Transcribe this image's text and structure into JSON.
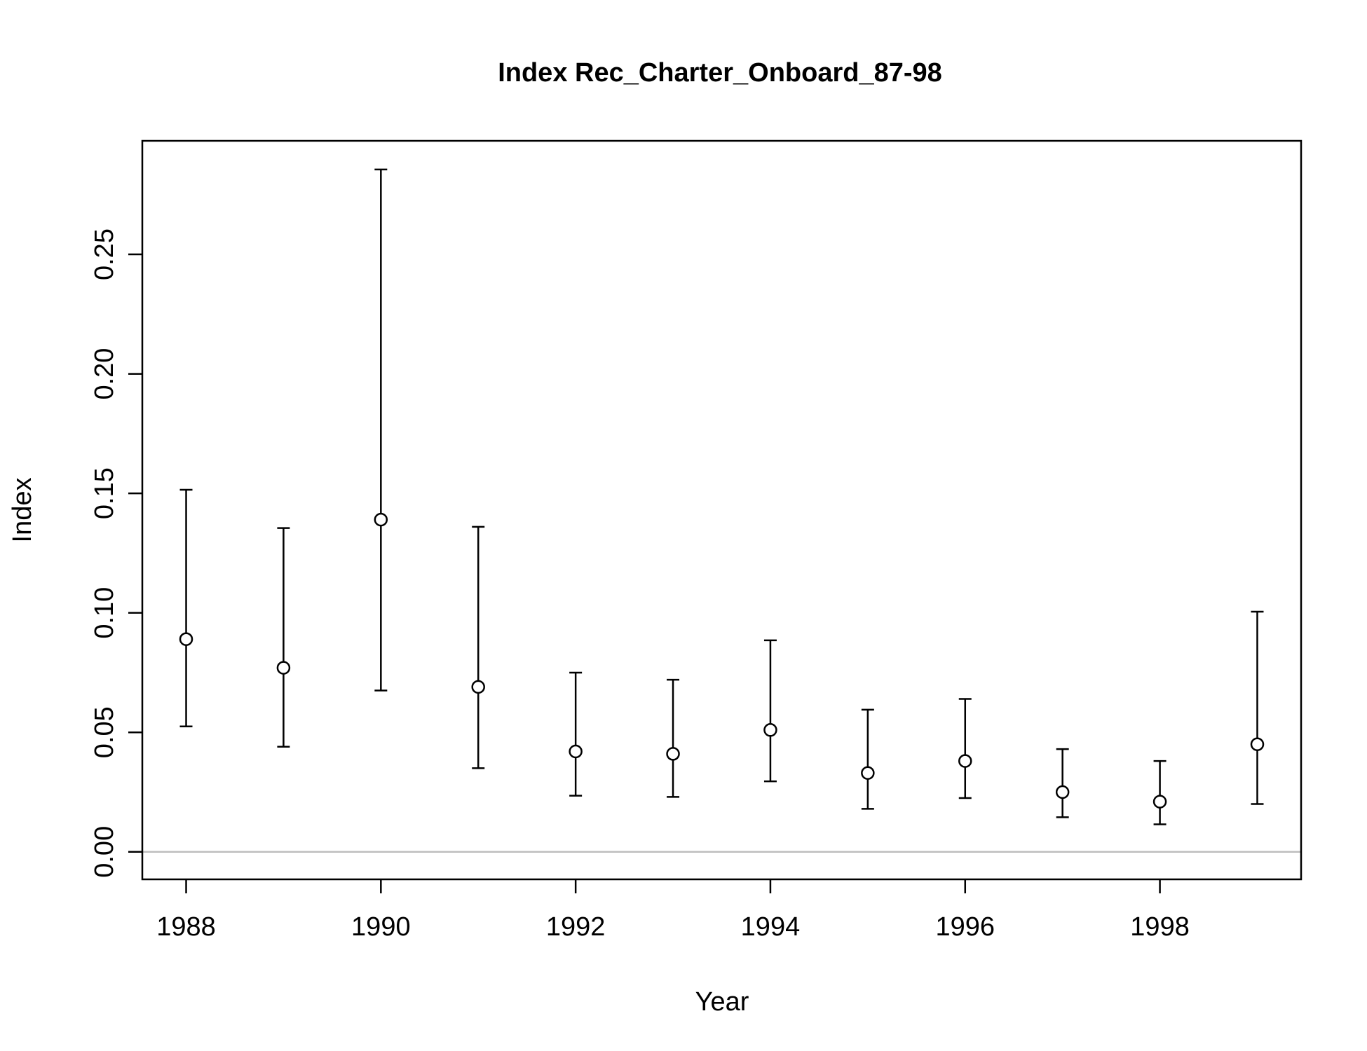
{
  "chart_data": {
    "type": "scatter",
    "title": "Index Rec_Charter_Onboard_87-98",
    "xlabel": "Year",
    "ylabel": "Index",
    "xlim": [
      1987.55,
      1999.45
    ],
    "ylim": [
      -0.0115,
      0.2975
    ],
    "x_ticks": [
      {
        "value": 1988,
        "label": "1988"
      },
      {
        "value": 1990,
        "label": "1990"
      },
      {
        "value": 1992,
        "label": "1992"
      },
      {
        "value": 1994,
        "label": "1994"
      },
      {
        "value": 1996,
        "label": "1996"
      },
      {
        "value": 1998,
        "label": "1998"
      }
    ],
    "y_ticks": [
      {
        "value": 0.0,
        "label": "0.00"
      },
      {
        "value": 0.05,
        "label": "0.05"
      },
      {
        "value": 0.1,
        "label": "0.10"
      },
      {
        "value": 0.15,
        "label": "0.15"
      },
      {
        "value": 0.2,
        "label": "0.20"
      },
      {
        "value": 0.25,
        "label": "0.25"
      }
    ],
    "reference_line": {
      "y": 0,
      "color": "#bebebe"
    },
    "points": [
      {
        "x": 1988,
        "y": 0.089,
        "lower": 0.0525,
        "upper": 0.1515
      },
      {
        "x": 1989,
        "y": 0.077,
        "lower": 0.044,
        "upper": 0.1355
      },
      {
        "x": 1990,
        "y": 0.139,
        "lower": 0.0675,
        "upper": 0.2855
      },
      {
        "x": 1991,
        "y": 0.069,
        "lower": 0.035,
        "upper": 0.136
      },
      {
        "x": 1992,
        "y": 0.042,
        "lower": 0.0235,
        "upper": 0.075
      },
      {
        "x": 1993,
        "y": 0.041,
        "lower": 0.023,
        "upper": 0.072
      },
      {
        "x": 1994,
        "y": 0.051,
        "lower": 0.0295,
        "upper": 0.0885
      },
      {
        "x": 1995,
        "y": 0.033,
        "lower": 0.018,
        "upper": 0.0595
      },
      {
        "x": 1996,
        "y": 0.038,
        "lower": 0.0225,
        "upper": 0.064
      },
      {
        "x": 1997,
        "y": 0.025,
        "lower": 0.0145,
        "upper": 0.043
      },
      {
        "x": 1998,
        "y": 0.021,
        "lower": 0.0115,
        "upper": 0.038
      },
      {
        "x": 1999,
        "y": 0.045,
        "lower": 0.02,
        "upper": 0.1005
      }
    ],
    "grid": false,
    "legend": "none"
  }
}
